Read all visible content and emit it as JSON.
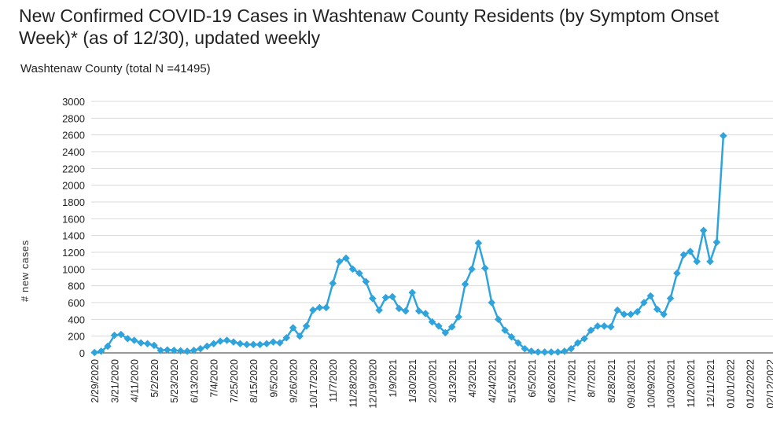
{
  "chart_data": {
    "type": "line",
    "title": "New Confirmed COVID-19 Cases in Washtenaw County Residents (by Symptom Onset Week)* (as of 12/30), updated weekly",
    "subtitle": "Washtenaw County (total N =41495)",
    "ylabel": "# new cases",
    "xlabel": "",
    "ylim": [
      0,
      3000
    ],
    "yticks": [
      0,
      200,
      400,
      600,
      800,
      1000,
      1200,
      1400,
      1600,
      1800,
      2000,
      2200,
      2400,
      2600,
      2800,
      3000
    ],
    "grid": true,
    "legend": "none",
    "x_tick_labels": [
      "2/29/2020",
      "3/21/2020",
      "4/11/2020",
      "5/2/2020",
      "5/23/2020",
      "6/13/2020",
      "7/4/2020",
      "7/25/2020",
      "8/15/2020",
      "9/5/2020",
      "9/26/2020",
      "10/17/2020",
      "11/7/2020",
      "11/28/2020",
      "12/19/2020",
      "1/9/2021",
      "1/30/2021",
      "2/20/2021",
      "3/13/2021",
      "4/3/2021",
      "4/24/2021",
      "5/15/2021",
      "6/5/2021",
      "6/26/2021",
      "7/17/2021",
      "8/7/2021",
      "8/28/2021",
      "09/18/2021",
      "10/09/2021",
      "10/30/2021",
      "11/20/2021",
      "12/11/2021",
      "01/01/2022",
      "01/22/2022",
      "02/12/2022"
    ],
    "series": [
      {
        "color": "#2fa3dc",
        "values": [
          5,
          20,
          80,
          210,
          220,
          170,
          150,
          120,
          110,
          90,
          30,
          35,
          30,
          25,
          20,
          30,
          50,
          80,
          110,
          140,
          150,
          130,
          110,
          100,
          100,
          100,
          110,
          130,
          120,
          180,
          300,
          200,
          320,
          510,
          540,
          540,
          830,
          1090,
          1130,
          1000,
          950,
          850,
          650,
          510,
          660,
          670,
          530,
          500,
          720,
          500,
          470,
          370,
          320,
          240,
          310,
          430,
          820,
          1000,
          1310,
          1010,
          600,
          400,
          270,
          190,
          120,
          50,
          20,
          10,
          10,
          10,
          10,
          20,
          50,
          120,
          170,
          270,
          320,
          320,
          310,
          510,
          460,
          460,
          490,
          600,
          680,
          520,
          460,
          650,
          950,
          1170,
          1210,
          1090,
          1460,
          1090,
          1320,
          2590
        ]
      }
    ]
  }
}
